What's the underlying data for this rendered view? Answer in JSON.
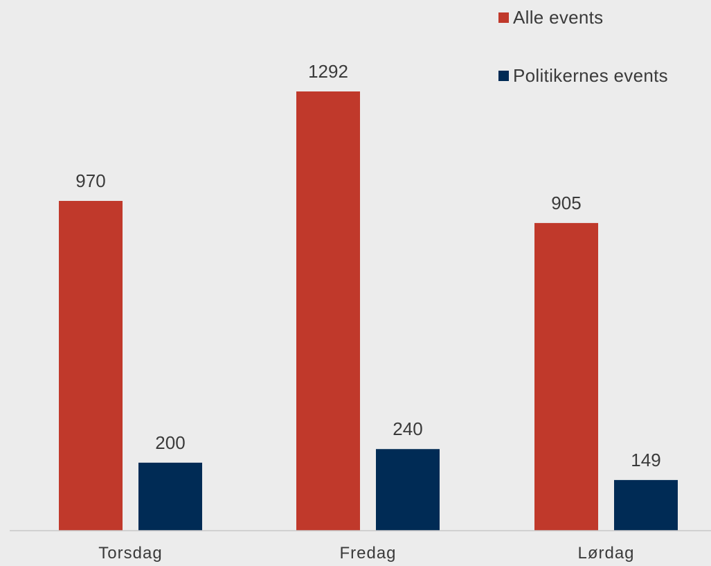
{
  "chart_data": {
    "type": "bar",
    "title": "",
    "xlabel": "",
    "ylabel": "",
    "categories": [
      "Torsdag",
      "Fredag",
      "Lørdag"
    ],
    "series": [
      {
        "name": "Alle events",
        "values": [
          970,
          1292,
          905
        ],
        "color": "#c0392b"
      },
      {
        "name": "Politikernes events",
        "values": [
          200,
          240,
          149
        ],
        "color": "#002b55"
      }
    ],
    "ylim": [
      0,
      1400
    ],
    "grid": false,
    "data_labels": true,
    "legend_position": "top-right"
  }
}
